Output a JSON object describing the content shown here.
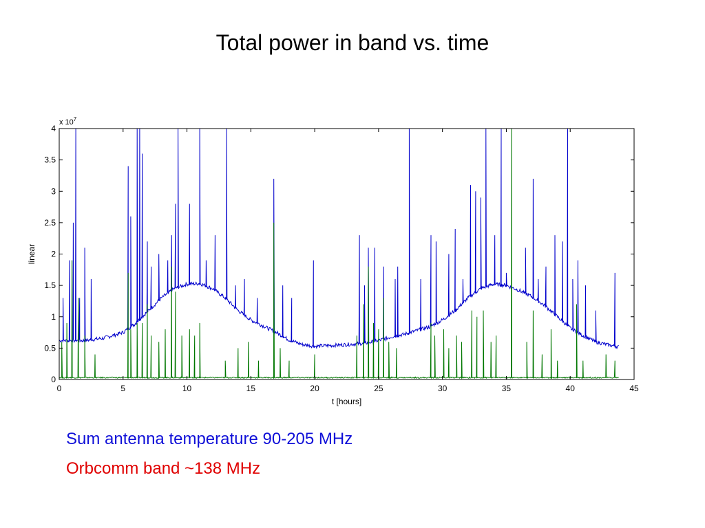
{
  "slide": {
    "title": "Total power in band vs. time",
    "captions": [
      {
        "text": "Sum antenna temperature  90-205 MHz",
        "color": "#1010d8"
      },
      {
        "text": "Orbcomm band ~138 MHz",
        "color": "#e00000"
      }
    ]
  },
  "chart_data": {
    "type": "line",
    "xlabel": "t [hours]",
    "ylabel": "linear",
    "exponent_label": "x 10",
    "exponent_sup": "7",
    "xlim": [
      0,
      45
    ],
    "ylim": [
      0,
      4
    ],
    "xticks": [
      "0",
      "5",
      "10",
      "15",
      "20",
      "25",
      "30",
      "35",
      "40",
      "45"
    ],
    "yticks": [
      "0",
      "0.5",
      "1",
      "1.5",
      "2",
      "2.5",
      "3",
      "3.5",
      "4"
    ],
    "series": [
      {
        "color": "#0000cc",
        "baseline": [
          [
            0,
            0.62
          ],
          [
            2,
            0.62
          ],
          [
            3.5,
            0.66
          ],
          [
            5,
            0.75
          ],
          [
            6,
            0.9
          ],
          [
            7,
            1.1
          ],
          [
            8,
            1.3
          ],
          [
            9,
            1.45
          ],
          [
            10,
            1.52
          ],
          [
            11,
            1.53
          ],
          [
            12,
            1.45
          ],
          [
            13,
            1.3
          ],
          [
            14,
            1.1
          ],
          [
            15,
            0.95
          ],
          [
            16,
            0.85
          ],
          [
            17,
            0.75
          ],
          [
            18,
            0.63
          ],
          [
            19,
            0.56
          ],
          [
            20,
            0.53
          ],
          [
            22,
            0.55
          ],
          [
            24,
            0.58
          ],
          [
            25,
            0.62
          ],
          [
            26,
            0.68
          ],
          [
            27,
            0.72
          ],
          [
            28,
            0.78
          ],
          [
            29,
            0.84
          ],
          [
            30,
            0.95
          ],
          [
            31,
            1.1
          ],
          [
            32,
            1.3
          ],
          [
            33,
            1.45
          ],
          [
            34,
            1.52
          ],
          [
            35,
            1.5
          ],
          [
            36,
            1.42
          ],
          [
            37,
            1.32
          ],
          [
            38,
            1.18
          ],
          [
            39,
            1.0
          ],
          [
            40,
            0.82
          ],
          [
            41,
            0.7
          ],
          [
            42,
            0.6
          ],
          [
            43,
            0.55
          ],
          [
            43.8,
            0.52
          ]
        ],
        "spikes": [
          [
            0.3,
            1.3
          ],
          [
            0.8,
            1.9
          ],
          [
            1.1,
            2.5
          ],
          [
            1.3,
            4.0
          ],
          [
            1.6,
            1.3
          ],
          [
            2.0,
            2.1
          ],
          [
            2.5,
            1.6
          ],
          [
            5.4,
            3.4
          ],
          [
            5.6,
            2.6
          ],
          [
            6.1,
            4.0
          ],
          [
            6.3,
            4.0
          ],
          [
            6.5,
            3.6
          ],
          [
            6.9,
            2.2
          ],
          [
            7.2,
            1.8
          ],
          [
            7.8,
            2.0
          ],
          [
            8.5,
            1.9
          ],
          [
            8.8,
            2.3
          ],
          [
            9.1,
            2.8
          ],
          [
            9.3,
            4.0
          ],
          [
            10.2,
            2.8
          ],
          [
            11.0,
            4.0
          ],
          [
            11.5,
            1.9
          ],
          [
            12.2,
            2.3
          ],
          [
            13.1,
            4.0
          ],
          [
            13.8,
            1.5
          ],
          [
            14.5,
            1.6
          ],
          [
            15.5,
            1.3
          ],
          [
            16.8,
            3.2
          ],
          [
            17.5,
            1.5
          ],
          [
            18.2,
            1.3
          ],
          [
            19.9,
            1.9
          ],
          [
            23.5,
            2.3
          ],
          [
            23.9,
            1.5
          ],
          [
            24.2,
            2.1
          ],
          [
            24.7,
            2.1
          ],
          [
            25.4,
            1.8
          ],
          [
            26.3,
            1.6
          ],
          [
            26.5,
            1.8
          ],
          [
            27.4,
            4.0
          ],
          [
            28.3,
            1.6
          ],
          [
            29.1,
            2.3
          ],
          [
            29.5,
            2.2
          ],
          [
            30.5,
            2.0
          ],
          [
            31.0,
            2.4
          ],
          [
            31.6,
            1.6
          ],
          [
            32.2,
            3.1
          ],
          [
            32.6,
            3.0
          ],
          [
            33.0,
            2.9
          ],
          [
            33.4,
            4.0
          ],
          [
            34.1,
            2.3
          ],
          [
            34.6,
            4.0
          ],
          [
            35.0,
            1.7
          ],
          [
            36.5,
            2.1
          ],
          [
            37.1,
            3.2
          ],
          [
            37.5,
            1.6
          ],
          [
            38.1,
            1.8
          ],
          [
            38.8,
            2.3
          ],
          [
            39.4,
            2.2
          ],
          [
            39.8,
            4.0
          ],
          [
            40.2,
            1.6
          ],
          [
            40.6,
            1.9
          ],
          [
            41.2,
            1.5
          ],
          [
            42.0,
            1.1
          ],
          [
            43.5,
            1.7
          ]
        ]
      },
      {
        "color": "#007700",
        "baseline": [
          [
            0,
            0.03
          ],
          [
            43.8,
            0.03
          ]
        ],
        "spikes": [
          [
            0.2,
            0.6
          ],
          [
            0.6,
            0.9
          ],
          [
            1.0,
            1.9
          ],
          [
            1.5,
            1.3
          ],
          [
            2.0,
            0.7
          ],
          [
            2.8,
            0.4
          ],
          [
            5.4,
            1.7
          ],
          [
            5.6,
            0.8
          ],
          [
            6.1,
            0.9
          ],
          [
            6.5,
            0.9
          ],
          [
            6.9,
            1.2
          ],
          [
            7.2,
            0.7
          ],
          [
            7.8,
            0.6
          ],
          [
            8.3,
            0.8
          ],
          [
            8.8,
            1.8
          ],
          [
            9.1,
            1.4
          ],
          [
            9.6,
            0.7
          ],
          [
            10.2,
            0.8
          ],
          [
            10.6,
            0.7
          ],
          [
            11.0,
            0.9
          ],
          [
            13.0,
            0.3
          ],
          [
            14.0,
            0.5
          ],
          [
            14.8,
            0.6
          ],
          [
            15.6,
            0.3
          ],
          [
            16.8,
            2.5
          ],
          [
            17.3,
            0.5
          ],
          [
            18.0,
            0.3
          ],
          [
            20.0,
            0.4
          ],
          [
            23.3,
            0.7
          ],
          [
            23.8,
            1.2
          ],
          [
            24.2,
            1.8
          ],
          [
            24.6,
            0.9
          ],
          [
            25.0,
            0.8
          ],
          [
            25.4,
            1.3
          ],
          [
            25.8,
            0.6
          ],
          [
            26.4,
            0.5
          ],
          [
            29.1,
            0.9
          ],
          [
            29.4,
            0.7
          ],
          [
            30.1,
            0.8
          ],
          [
            30.5,
            0.5
          ],
          [
            31.1,
            0.7
          ],
          [
            31.5,
            0.6
          ],
          [
            32.3,
            1.1
          ],
          [
            32.7,
            1.0
          ],
          [
            33.2,
            1.1
          ],
          [
            33.8,
            0.6
          ],
          [
            34.2,
            0.7
          ],
          [
            35.4,
            4.0
          ],
          [
            36.6,
            0.6
          ],
          [
            37.1,
            1.1
          ],
          [
            37.8,
            0.4
          ],
          [
            38.5,
            0.8
          ],
          [
            39.0,
            0.3
          ],
          [
            40.5,
            1.2
          ],
          [
            41.0,
            0.3
          ],
          [
            42.8,
            0.4
          ],
          [
            43.5,
            0.3
          ]
        ]
      }
    ],
    "grid": false
  }
}
